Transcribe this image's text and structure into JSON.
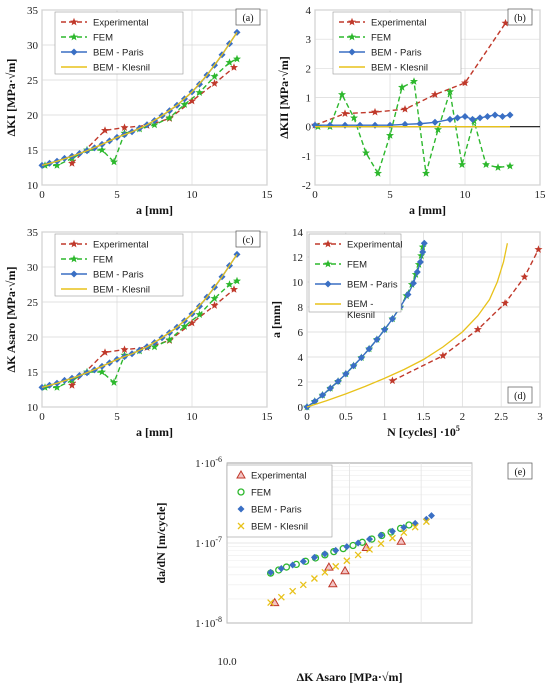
{
  "colors": {
    "experimental": "#c0392b",
    "fem": "#2db82d",
    "bem_paris": "#3a6fc4",
    "bem_klesnil": "#e8c21a"
  },
  "chart_data": [
    {
      "id": "a",
      "type": "line",
      "panel_label": "(a)",
      "xlabel": "a [mm]",
      "ylabel": "ΔKI [MPa·√m]",
      "xlim": [
        0,
        15
      ],
      "ylim": [
        10,
        35
      ],
      "xticks": [
        "0",
        "5",
        "10",
        "15"
      ],
      "yticks": [
        "10",
        "15",
        "20",
        "25",
        "30",
        "35"
      ],
      "legend": [
        "Experimental",
        "FEM",
        "BEM - Paris",
        "BEM - Klesnil"
      ],
      "series": [
        {
          "name": "Experimental",
          "x": [
            2,
            4.2,
            5.5,
            7,
            8.5,
            10,
            11.5,
            12.8
          ],
          "y": [
            13.1,
            17.8,
            18.2,
            18.5,
            19.5,
            22.0,
            24.5,
            26.8
          ]
        },
        {
          "name": "FEM",
          "x": [
            0.2,
            1,
            2,
            3,
            4,
            4.8,
            5.5,
            6.5,
            7.5,
            8.5,
            9.5,
            10.5,
            11.5,
            12.5,
            13
          ],
          "y": [
            12.8,
            12.8,
            13.8,
            15.0,
            15.0,
            13.3,
            17.4,
            18.0,
            18.6,
            19.6,
            21.5,
            23.2,
            25.5,
            27.5,
            28.0
          ]
        },
        {
          "name": "BEM - Paris",
          "x": [
            0,
            0.5,
            1,
            1.5,
            2,
            2.5,
            3,
            3.5,
            4,
            4.5,
            5,
            5.5,
            6,
            6.5,
            7,
            7.5,
            8,
            8.5,
            9,
            9.5,
            10,
            10.5,
            11,
            11.5,
            12,
            12.5,
            13
          ],
          "y": [
            12.8,
            13.1,
            13.4,
            13.8,
            14.1,
            14.5,
            14.9,
            15.3,
            15.8,
            16.3,
            16.8,
            17.2,
            17.6,
            18.1,
            18.6,
            19.2,
            19.9,
            20.6,
            21.4,
            22.3,
            23.3,
            24.4,
            25.7,
            27.1,
            28.6,
            30.2,
            31.8
          ]
        },
        {
          "name": "BEM - Klesnil",
          "x": [
            0,
            1,
            2,
            3,
            4,
            5,
            6,
            7,
            8,
            9,
            10,
            11,
            12,
            13
          ],
          "y": [
            12.8,
            13.4,
            14.1,
            14.9,
            15.8,
            16.8,
            17.6,
            18.6,
            19.9,
            21.4,
            23.3,
            25.7,
            28.6,
            31.8
          ]
        }
      ]
    },
    {
      "id": "b",
      "type": "line",
      "panel_label": "(b)",
      "xlabel": "a [mm]",
      "ylabel": "ΔKII [MPa·√m]",
      "xlim": [
        0,
        15
      ],
      "ylim": [
        -2,
        4
      ],
      "xticks": [
        "0",
        "5",
        "10",
        "15"
      ],
      "yticks": [
        "-2",
        "-1",
        "0",
        "1",
        "2",
        "3",
        "4"
      ],
      "legend": [
        "Experimental",
        "FEM",
        "BEM - Paris",
        "BEM - Klesnil"
      ],
      "series": [
        {
          "name": "Experimental",
          "x": [
            0,
            2,
            4,
            6,
            8,
            10,
            12.7
          ],
          "y": [
            0.05,
            0.45,
            0.5,
            0.6,
            1.1,
            1.5,
            3.55
          ]
        },
        {
          "name": "FEM",
          "x": [
            0.2,
            1,
            1.8,
            2.6,
            3.4,
            4.2,
            5.0,
            5.8,
            6.6,
            7.4,
            8.2,
            9.0,
            9.8,
            10.6,
            11.4,
            12.2,
            13
          ],
          "y": [
            0.0,
            0.0,
            1.1,
            0.3,
            -0.9,
            -1.6,
            -0.3,
            1.35,
            1.55,
            -1.6,
            -0.1,
            1.2,
            -1.3,
            0.2,
            -1.3,
            -1.4,
            -1.35
          ]
        },
        {
          "name": "BEM - Paris",
          "x": [
            0,
            1,
            2,
            3,
            4,
            5,
            6,
            7,
            8,
            9,
            9.5,
            10,
            10.5,
            11,
            11.5,
            12,
            12.5,
            13
          ],
          "y": [
            0.05,
            0.05,
            0.05,
            0.05,
            0.05,
            0.05,
            0.08,
            0.1,
            0.15,
            0.25,
            0.3,
            0.35,
            0.25,
            0.3,
            0.35,
            0.4,
            0.35,
            0.4
          ]
        },
        {
          "name": "BEM - Klesnil",
          "x": [
            0,
            13
          ],
          "y": [
            0.0,
            0.0
          ]
        }
      ]
    },
    {
      "id": "c",
      "type": "line",
      "panel_label": "(c)",
      "xlabel": "a [mm]",
      "ylabel": "ΔK Asaro [MPa·√m]",
      "xlim": [
        0,
        15
      ],
      "ylim": [
        10,
        35
      ],
      "xticks": [
        "0",
        "5",
        "10",
        "15"
      ],
      "yticks": [
        "10",
        "15",
        "20",
        "25",
        "30",
        "35"
      ],
      "legend": [
        "Experimental",
        "FEM",
        "BEM - Paris",
        "BEM - Klesnil"
      ],
      "series": [
        {
          "name": "Experimental",
          "x": [
            2,
            4.2,
            5.5,
            7,
            8.5,
            10,
            11.5,
            12.8
          ],
          "y": [
            13.1,
            17.8,
            18.2,
            18.5,
            19.5,
            22.0,
            24.5,
            26.8
          ]
        },
        {
          "name": "FEM",
          "x": [
            0.2,
            1,
            2,
            3,
            4,
            4.8,
            5.5,
            6.5,
            7.5,
            8.5,
            9.5,
            10.5,
            11.5,
            12.5,
            13
          ],
          "y": [
            12.8,
            12.8,
            13.8,
            15.0,
            15.0,
            13.5,
            17.4,
            18.0,
            18.6,
            19.6,
            21.5,
            23.2,
            25.5,
            27.5,
            28.0
          ]
        },
        {
          "name": "BEM - Paris",
          "x": [
            0,
            0.5,
            1,
            1.5,
            2,
            2.5,
            3,
            3.5,
            4,
            4.5,
            5,
            5.5,
            6,
            6.5,
            7,
            7.5,
            8,
            8.5,
            9,
            9.5,
            10,
            10.5,
            11,
            11.5,
            12,
            12.5,
            13
          ],
          "y": [
            12.8,
            13.1,
            13.4,
            13.8,
            14.1,
            14.5,
            14.9,
            15.3,
            15.8,
            16.3,
            16.8,
            17.2,
            17.6,
            18.1,
            18.6,
            19.2,
            19.9,
            20.6,
            21.4,
            22.3,
            23.3,
            24.4,
            25.7,
            27.1,
            28.6,
            30.2,
            31.8
          ]
        },
        {
          "name": "BEM - Klesnil",
          "x": [
            0,
            1,
            2,
            3,
            4,
            5,
            6,
            7,
            8,
            9,
            10,
            11,
            12,
            13
          ],
          "y": [
            12.8,
            13.4,
            14.1,
            14.9,
            15.8,
            16.8,
            17.6,
            18.6,
            19.9,
            21.4,
            23.3,
            25.7,
            28.6,
            31.8
          ]
        }
      ]
    },
    {
      "id": "d",
      "type": "line",
      "panel_label": "(d)",
      "xlabel": "N [cycles] ·10",
      "xlabel_sup": "5",
      "ylabel": "a [mm]",
      "xlim": [
        0,
        3
      ],
      "ylim": [
        0,
        14
      ],
      "xticks": [
        "0",
        "0.5",
        "1",
        "1.5",
        "2",
        "2.5",
        "3"
      ],
      "yticks": [
        "0",
        "2",
        "4",
        "6",
        "8",
        "10",
        "12",
        "14"
      ],
      "legend": [
        "Experimental",
        "FEM",
        "BEM - Paris",
        "BEM - Klesnil"
      ],
      "series": [
        {
          "name": "Experimental",
          "x": [
            1.1,
            1.75,
            2.2,
            2.55,
            2.8,
            2.98
          ],
          "y": [
            2.1,
            4.1,
            6.2,
            8.3,
            10.4,
            12.6
          ]
        },
        {
          "name": "FEM",
          "x": [
            0,
            0.1,
            0.2,
            0.3,
            0.4,
            0.5,
            0.6,
            0.7,
            0.8,
            0.9,
            1.0,
            1.1,
            1.2,
            1.28,
            1.35,
            1.4,
            1.44,
            1.47,
            1.49
          ],
          "y": [
            0,
            0.45,
            0.95,
            1.5,
            2.05,
            2.65,
            3.3,
            3.95,
            4.65,
            5.4,
            6.2,
            7.05,
            8.0,
            8.9,
            9.8,
            10.6,
            11.4,
            12.1,
            12.8
          ]
        },
        {
          "name": "BEM - Paris",
          "x": [
            0,
            0.1,
            0.2,
            0.3,
            0.4,
            0.5,
            0.6,
            0.7,
            0.8,
            0.9,
            1.0,
            1.1,
            1.2,
            1.3,
            1.37,
            1.42,
            1.46,
            1.49,
            1.51
          ],
          "y": [
            0,
            0.45,
            0.95,
            1.5,
            2.05,
            2.65,
            3.3,
            3.95,
            4.65,
            5.4,
            6.2,
            7.05,
            8.0,
            9.0,
            9.9,
            10.8,
            11.6,
            12.4,
            13.1
          ]
        },
        {
          "name": "BEM - Klesnil",
          "x": [
            0,
            0.25,
            0.5,
            0.75,
            1.0,
            1.25,
            1.5,
            1.75,
            2.0,
            2.2,
            2.35,
            2.45,
            2.53,
            2.58
          ],
          "y": [
            0,
            0.5,
            1.05,
            1.65,
            2.3,
            3.0,
            3.8,
            4.8,
            6.0,
            7.3,
            8.6,
            10.0,
            11.6,
            13.1
          ]
        }
      ]
    },
    {
      "id": "e",
      "type": "scatter",
      "panel_label": "(e)",
      "xlabel": "ΔK Asaro [MPa·√m]",
      "ylabel": "da/dN [m/cycle]",
      "xscale": "log",
      "yscale": "log",
      "xlim": [
        10,
        40
      ],
      "ylim": [
        1e-08,
        1e-06
      ],
      "xticks": [
        "10.0"
      ],
      "yticks": [
        "1·10",
        "1·10",
        "1·10"
      ],
      "ytick_sups": [
        "-6",
        "-7",
        "-8"
      ],
      "legend": [
        "Experimental",
        "FEM",
        "BEM - Paris",
        "BEM - Klesnil"
      ],
      "series": [
        {
          "name": "Experimental",
          "x": [
            13.1,
            17.8,
            18.2,
            19.5,
            22.0,
            26.8
          ],
          "y": [
            1.8e-08,
            5e-08,
            3.1e-08,
            4.5e-08,
            8.8e-08,
            1.05e-07
          ]
        },
        {
          "name": "FEM",
          "x": [
            12.8,
            13.4,
            14.0,
            14.8,
            15.6,
            16.5,
            17.4,
            18.3,
            19.3,
            20.4,
            21.5,
            22.7,
            24.0,
            25.3,
            26.7,
            28.0
          ],
          "y": [
            4.2e-08,
            4.6e-08,
            5e-08,
            5.4e-08,
            5.9e-08,
            6.5e-08,
            7.1e-08,
            7.8e-08,
            8.5e-08,
            9.3e-08,
            1.02e-07,
            1.12e-07,
            1.24e-07,
            1.37e-07,
            1.52e-07,
            1.68e-07
          ]
        },
        {
          "name": "BEM - Paris",
          "x": [
            12.8,
            13.6,
            14.5,
            15.4,
            16.4,
            17.4,
            18.5,
            19.7,
            21.0,
            22.4,
            23.9,
            25.5,
            27.2,
            29.0,
            30.9,
            31.8
          ],
          "y": [
            4.3e-08,
            4.8e-08,
            5.3e-08,
            5.9e-08,
            6.6e-08,
            7.3e-08,
            8.1e-08,
            9e-08,
            1e-07,
            1.12e-07,
            1.25e-07,
            1.4e-07,
            1.57e-07,
            1.76e-07,
            1.98e-07,
            2.2e-07
          ]
        },
        {
          "name": "BEM - Klesnil",
          "x": [
            12.8,
            13.6,
            14.5,
            15.4,
            16.4,
            17.4,
            18.5,
            19.7,
            21.0,
            22.4,
            23.9,
            25.5,
            27.2,
            29.0,
            30.9
          ],
          "y": [
            1.8e-08,
            2.1e-08,
            2.5e-08,
            3e-08,
            3.6e-08,
            4.3e-08,
            5.1e-08,
            6e-08,
            7.1e-08,
            8.3e-08,
            9.8e-08,
            1.15e-07,
            1.35e-07,
            1.58e-07,
            1.85e-07
          ]
        }
      ]
    }
  ]
}
